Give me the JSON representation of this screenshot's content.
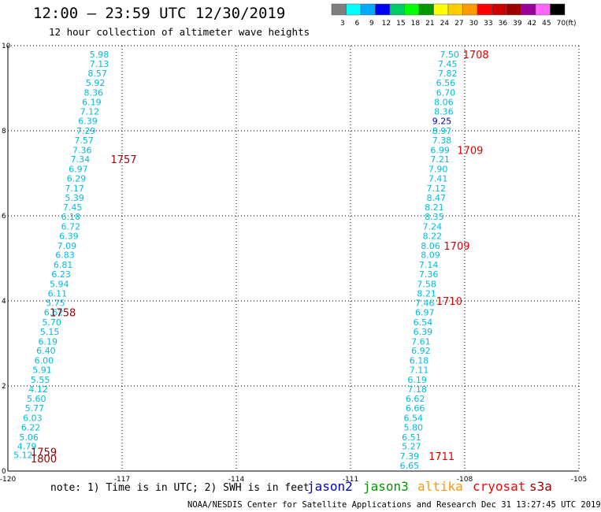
{
  "header": {
    "title": "12:00 – 23:59 UTC 12/30/2019",
    "subtitle": "12 hour collection of altimeter wave heights"
  },
  "color_scale": {
    "unit": "(ft)",
    "ticks": [
      "3",
      "6",
      "9",
      "12",
      "15",
      "18",
      "21",
      "24",
      "27",
      "30",
      "33",
      "36",
      "39",
      "42",
      "45",
      "70"
    ],
    "colors": [
      "#7f7f7f",
      "#00ffff",
      "#00aaff",
      "#0000ff",
      "#00cc66",
      "#00ff00",
      "#009900",
      "#ffff00",
      "#ffcc00",
      "#ff9900",
      "#ff0000",
      "#cc0000",
      "#990000",
      "#990099",
      "#ff66ff",
      "#000000"
    ]
  },
  "chart_data": {
    "type": "scatter",
    "title": "12 hour collection of altimeter wave heights",
    "xlim": [
      -120,
      -105
    ],
    "ylim": [
      0,
      10
    ],
    "x_ticks": [
      "-120",
      "-117",
      "-114",
      "-111",
      "-108",
      "-105"
    ],
    "x_tick_values": [
      -120,
      -117,
      -114,
      -111,
      -108,
      -105
    ],
    "y_ticks": [
      "0",
      "2",
      "4",
      "6",
      "8",
      "10"
    ],
    "y_tick_values": [
      0,
      2,
      4,
      6,
      8,
      10
    ],
    "grid": true,
    "tracks": [
      {
        "color": "#00bbdd",
        "points": [
          [
            -117.6,
            9.8,
            "5.98"
          ],
          [
            -117.6,
            9.57,
            "7.13"
          ],
          [
            -117.65,
            9.35,
            "8.57"
          ],
          [
            -117.7,
            9.13,
            "5.92"
          ],
          [
            -117.75,
            8.9,
            "8.36"
          ],
          [
            -117.8,
            8.68,
            "6.19"
          ],
          [
            -117.85,
            8.45,
            "7.12"
          ],
          [
            -117.9,
            8.23,
            "6.39"
          ],
          [
            -117.95,
            8.0,
            "7.29"
          ],
          [
            -118.0,
            7.78,
            "7.57"
          ],
          [
            -118.05,
            7.55,
            "7.36"
          ],
          [
            -118.1,
            7.33,
            "7.34"
          ],
          [
            -118.15,
            7.1,
            "6.97"
          ],
          [
            -118.2,
            6.88,
            "6.29"
          ],
          [
            -118.25,
            6.65,
            "7.17"
          ],
          [
            -118.25,
            6.43,
            "5.39"
          ],
          [
            -118.3,
            6.2,
            "7.45"
          ],
          [
            -118.35,
            5.98,
            "6.18"
          ],
          [
            -118.35,
            5.75,
            "6.72"
          ],
          [
            -118.4,
            5.53,
            "6.39"
          ],
          [
            -118.45,
            5.3,
            "7.09"
          ],
          [
            -118.5,
            5.08,
            "6.83"
          ],
          [
            -118.55,
            4.85,
            "6.81"
          ],
          [
            -118.6,
            4.63,
            "6.23"
          ],
          [
            -118.65,
            4.4,
            "5.94"
          ],
          [
            -118.7,
            4.18,
            "6.11"
          ],
          [
            -118.75,
            3.95,
            "5.75"
          ],
          [
            -118.8,
            3.73,
            "6.62"
          ],
          [
            -118.85,
            3.5,
            "5.70"
          ],
          [
            -118.9,
            3.28,
            "5.15"
          ],
          [
            -118.95,
            3.05,
            "6.19"
          ],
          [
            -119.0,
            2.83,
            "6.40"
          ],
          [
            -119.05,
            2.6,
            "6.00"
          ],
          [
            -119.1,
            2.38,
            "5.91"
          ],
          [
            -119.15,
            2.15,
            "5.55"
          ],
          [
            -119.2,
            1.93,
            "4.12"
          ],
          [
            -119.25,
            1.7,
            "5.60"
          ],
          [
            -119.3,
            1.48,
            "5.77"
          ],
          [
            -119.35,
            1.25,
            "6.03"
          ],
          [
            -119.4,
            1.03,
            "6.22"
          ],
          [
            -119.45,
            0.8,
            "5.06"
          ],
          [
            -119.5,
            0.58,
            "4.79"
          ],
          [
            -119.6,
            0.38,
            "5.12"
          ],
          [
            -108.4,
            9.8,
            "7.50"
          ],
          [
            -108.45,
            9.57,
            "7.45"
          ],
          [
            -108.45,
            9.35,
            "7.82"
          ],
          [
            -108.5,
            9.13,
            "6.56"
          ],
          [
            -108.5,
            8.9,
            "6.70"
          ],
          [
            -108.55,
            8.68,
            "8.06"
          ],
          [
            -108.55,
            8.45,
            "8.36"
          ],
          [
            -108.6,
            8.0,
            "8.97"
          ],
          [
            -108.6,
            7.78,
            "7.38"
          ],
          [
            -108.65,
            7.55,
            "6.99"
          ],
          [
            -108.65,
            7.33,
            "7.21"
          ],
          [
            -108.7,
            7.1,
            "7.90"
          ],
          [
            -108.7,
            6.88,
            "7.41"
          ],
          [
            -108.75,
            6.65,
            "7.12"
          ],
          [
            -108.75,
            6.43,
            "8.47"
          ],
          [
            -108.8,
            6.2,
            "8.21"
          ],
          [
            -108.8,
            5.98,
            "8.35"
          ],
          [
            -108.85,
            5.75,
            "7.24"
          ],
          [
            -108.85,
            5.53,
            "8.22"
          ],
          [
            -108.9,
            5.3,
            "8.06"
          ],
          [
            -108.9,
            5.08,
            "8.09"
          ],
          [
            -108.95,
            4.85,
            "7.14"
          ],
          [
            -108.95,
            4.63,
            "7.36"
          ],
          [
            -109.0,
            4.4,
            "7.58"
          ],
          [
            -109.0,
            4.18,
            "8.21"
          ],
          [
            -109.05,
            3.95,
            "7.46"
          ],
          [
            -109.05,
            3.73,
            "6.97"
          ],
          [
            -109.1,
            3.5,
            "6.54"
          ],
          [
            -109.1,
            3.28,
            "6.39"
          ],
          [
            -109.15,
            3.05,
            "7.61"
          ],
          [
            -109.15,
            2.83,
            "6.92"
          ],
          [
            -109.2,
            2.6,
            "6.18"
          ],
          [
            -109.2,
            2.38,
            "7.11"
          ],
          [
            -109.25,
            2.15,
            "6.19"
          ],
          [
            -109.25,
            1.93,
            "7.18"
          ],
          [
            -109.3,
            1.7,
            "6.62"
          ],
          [
            -109.3,
            1.48,
            "6.66"
          ],
          [
            -109.35,
            1.25,
            "6.54"
          ],
          [
            -109.35,
            1.03,
            "5.80"
          ],
          [
            -109.4,
            0.8,
            "6.51"
          ],
          [
            -109.4,
            0.58,
            "5.27"
          ],
          [
            -109.45,
            0.35,
            "7.39"
          ],
          [
            -109.45,
            0.13,
            "6.65"
          ]
        ]
      },
      {
        "color": "#0000aa",
        "points": [
          [
            -108.6,
            8.23,
            "9.25"
          ]
        ]
      }
    ],
    "time_labels": [
      {
        "x": -117.3,
        "y": 7.33,
        "text": "1757",
        "color": "#990000"
      },
      {
        "x": -118.9,
        "y": 3.73,
        "text": "1758",
        "color": "#990000"
      },
      {
        "x": -119.4,
        "y": 0.45,
        "text": "1759",
        "color": "#990000"
      },
      {
        "x": -119.4,
        "y": 0.3,
        "text": "1800",
        "color": "#990000"
      },
      {
        "x": -108.05,
        "y": 9.8,
        "text": "1708",
        "color": "#dd0000"
      },
      {
        "x": -108.2,
        "y": 7.55,
        "text": "1709",
        "color": "#dd0000"
      },
      {
        "x": -108.55,
        "y": 5.3,
        "text": "1709",
        "color": "#dd0000"
      },
      {
        "x": -108.75,
        "y": 4.0,
        "text": "1710",
        "color": "#dd0000"
      },
      {
        "x": -108.95,
        "y": 0.35,
        "text": "1711",
        "color": "#dd0000"
      }
    ]
  },
  "note": "note: 1) Time is in UTC; 2) SWH is in feet",
  "satellites": [
    {
      "name": "jason2",
      "color": "#0000cc"
    },
    {
      "name": "jason3",
      "color": "#009900"
    },
    {
      "name": "altika",
      "color": "#ff9900"
    },
    {
      "name": "cryosat",
      "color": "#ff0000"
    },
    {
      "name": "s3a",
      "color": "#990000"
    }
  ],
  "footer": "NOAA/NESDIS Center for Satellite Applications and Research   Dec 31 13:27:45 UTC 2019"
}
